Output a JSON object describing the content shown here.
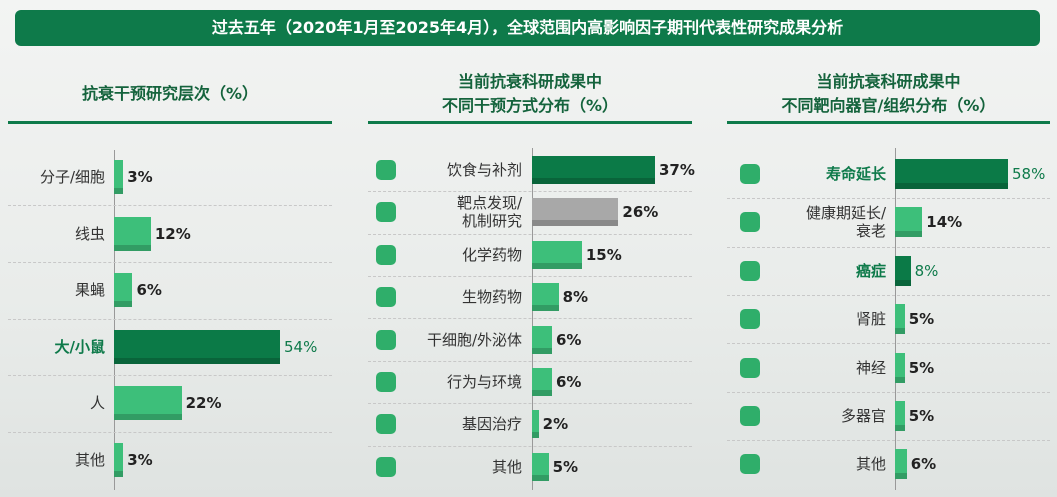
{
  "header": {
    "title": "过去五年（2020年1月至2025年4月），全球范围内高影响因子期刊代表性研究成果分析"
  },
  "chart_data": [
    {
      "type": "bar",
      "orientation": "horizontal",
      "title": "抗衰干预研究层次（%）",
      "categories": [
        "分子/细胞",
        "线虫",
        "果蝇",
        "大/小鼠",
        "人",
        "其他"
      ],
      "values": [
        3,
        12,
        6,
        54,
        22,
        3
      ],
      "value_labels": [
        "3%",
        "12%",
        "6%",
        "54%",
        "22%",
        "3%"
      ],
      "colors": [
        "#3dbf7a",
        "#3dbf7a",
        "#3dbf7a",
        "#0b7a47",
        "#3dbf7a",
        "#3dbf7a"
      ],
      "bold": [
        false,
        false,
        false,
        true,
        false,
        false
      ]
    },
    {
      "type": "bar",
      "orientation": "horizontal",
      "title": "当前抗衰科研成果中\n不同干预方式分布（%）",
      "categories": [
        "饮食与补剂",
        "靶点发现/\n机制研究",
        "化学药物",
        "生物药物",
        "干细胞/外泌体",
        "行为与环境",
        "基因治疗",
        "其他"
      ],
      "values": [
        37,
        26,
        15,
        8,
        6,
        6,
        2,
        5
      ],
      "value_labels": [
        "37%",
        "26%",
        "15%",
        "8%",
        "6%",
        "6%",
        "2%",
        "5%"
      ],
      "colors": [
        "#0b7a47",
        "#a8a8a8",
        "#3dbf7a",
        "#3dbf7a",
        "#3dbf7a",
        "#3dbf7a",
        "#3dbf7a",
        "#3dbf7a"
      ],
      "bold": [
        false,
        false,
        false,
        false,
        false,
        false,
        false,
        false
      ]
    },
    {
      "type": "bar",
      "orientation": "horizontal",
      "title": "当前抗衰科研成果中\n不同靶向器官/组织分布（%）",
      "categories": [
        "寿命延长",
        "健康期延长/\n衰老",
        "癌症",
        "肾脏",
        "神经",
        "多器官",
        "其他"
      ],
      "values": [
        58,
        14,
        8,
        5,
        5,
        5,
        6
      ],
      "value_labels": [
        "58%",
        "14%",
        "8%",
        "5%",
        "5%",
        "5%",
        "6%"
      ],
      "colors": [
        "#0b7a47",
        "#3dbf7a",
        "#0b7a47",
        "#3dbf7a",
        "#3dbf7a",
        "#3dbf7a",
        "#3dbf7a"
      ],
      "bold": [
        true,
        false,
        true,
        false,
        false,
        false,
        false
      ]
    }
  ]
}
